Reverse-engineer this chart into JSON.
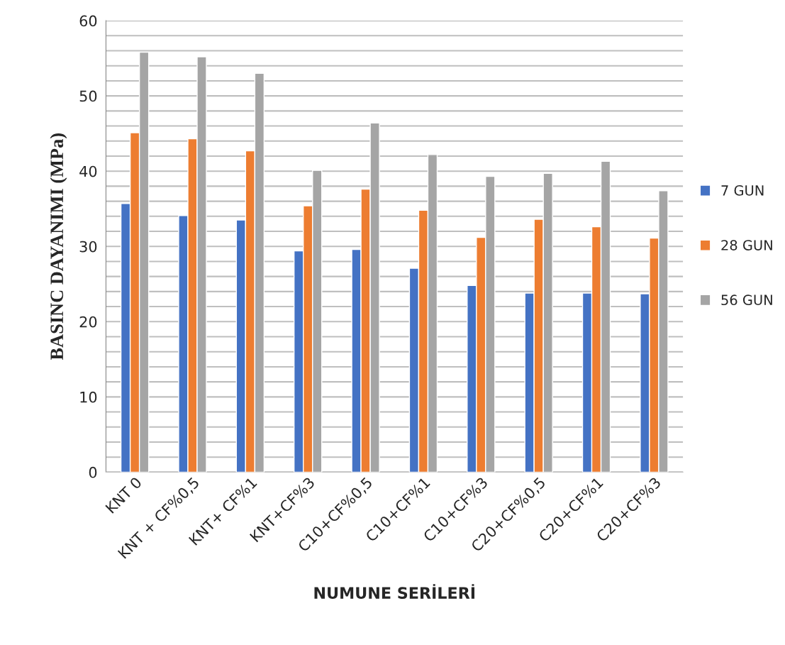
{
  "chart_data": {
    "type": "bar",
    "xlabel": "NUMUNE SERİLERİ",
    "ylabel": "BASINC DAYANIMI (MPa)",
    "categories": [
      "KNT 0",
      "KNT + CF%0,5",
      "KNT+ CF%1",
      "KNT+CF%3",
      "C10+CF%0,5",
      "C10+CF%1",
      "C10+CF%3",
      "C20+CF%0,5",
      "C20+CF%1",
      "C20+CF%3"
    ],
    "series": [
      {
        "name": "7 GUN",
        "color": "#4472c4",
        "values": [
          35.7,
          34.1,
          33.5,
          29.4,
          29.6,
          27.1,
          24.8,
          23.8,
          23.8,
          23.7
        ]
      },
      {
        "name": "28 GUN",
        "color": "#ed7d31",
        "values": [
          45.1,
          44.3,
          42.7,
          35.4,
          37.6,
          34.8,
          31.2,
          33.6,
          32.6,
          31.1
        ]
      },
      {
        "name": "56 GUN",
        "color": "#a5a5a5",
        "values": [
          55.8,
          55.2,
          53.0,
          40.1,
          46.4,
          42.2,
          39.3,
          39.7,
          41.3,
          37.4
        ]
      }
    ],
    "ylim": [
      0,
      60
    ],
    "yticks": [
      0,
      {
        "value": 2,
        "label": null
      },
      {
        "value": 4,
        "label": null
      },
      {
        "value": 6,
        "label": null
      },
      {
        "value": 8,
        "label": null
      },
      10,
      {
        "value": 12,
        "label": null
      },
      {
        "value": 14,
        "label": null
      },
      {
        "value": 16,
        "label": null
      },
      {
        "value": 18,
        "label": null
      },
      20,
      {
        "value": 22,
        "label": null
      },
      {
        "value": 24,
        "label": null
      },
      {
        "value": 26,
        "label": null
      },
      {
        "value": 28,
        "label": null
      },
      30,
      {
        "value": 32,
        "label": null
      },
      {
        "value": 34,
        "label": null
      },
      {
        "value": 36,
        "label": null
      },
      {
        "value": 38,
        "label": null
      },
      40,
      {
        "value": 42,
        "label": null
      },
      {
        "value": 44,
        "label": null
      },
      {
        "value": 46,
        "label": null
      },
      {
        "value": 48,
        "label": null
      },
      50,
      {
        "value": 52,
        "label": null
      },
      {
        "value": 54,
        "label": null
      },
      {
        "value": 56,
        "label": null
      },
      {
        "value": 58,
        "label": null
      },
      60
    ],
    "grid": "y",
    "legend": "right"
  }
}
